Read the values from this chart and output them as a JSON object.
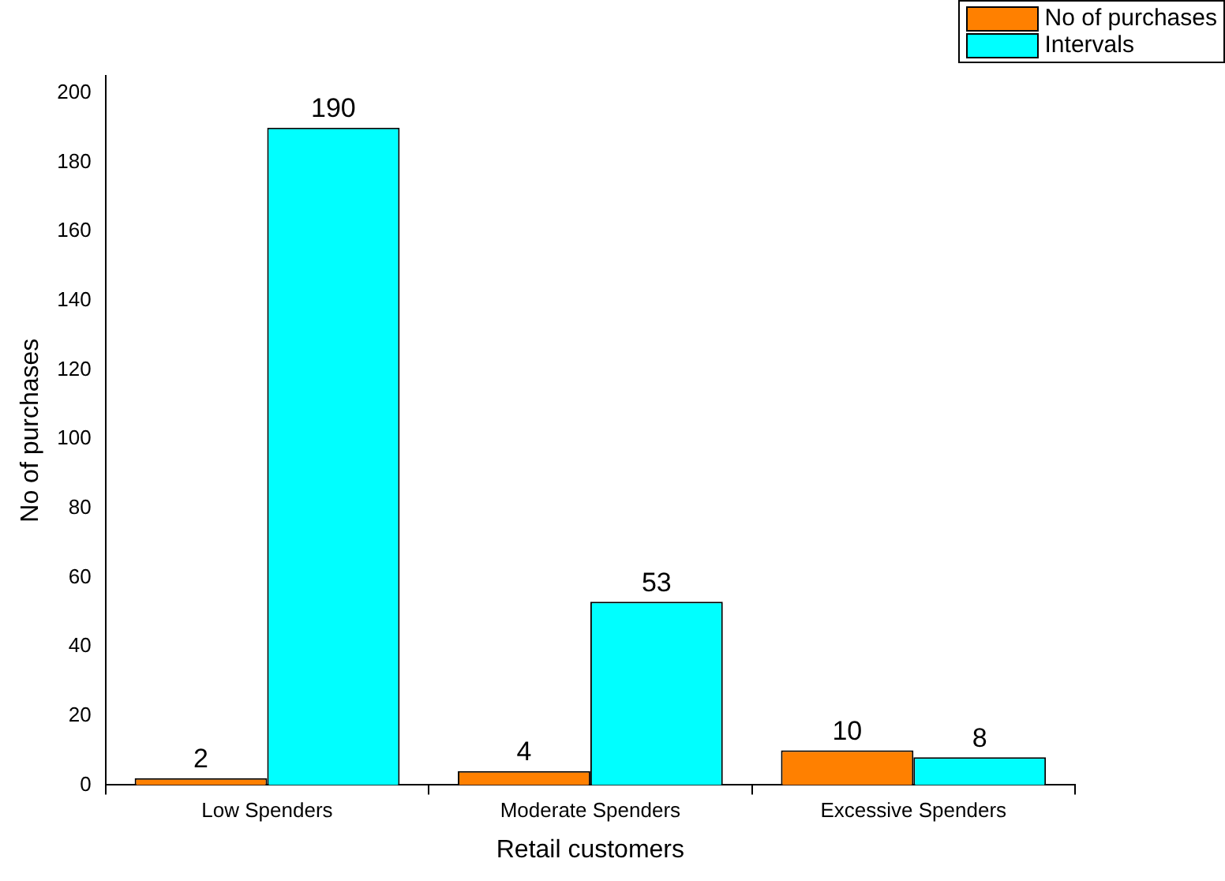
{
  "chart_data": {
    "type": "bar",
    "xlabel": "Retail customers",
    "ylabel": "No of purchases",
    "categories": [
      "Low Spenders",
      "Moderate Spenders",
      "Excessive Spenders"
    ],
    "series": [
      {
        "name": "No of purchases",
        "color": "#ff8000",
        "values": [
          2,
          4,
          10
        ]
      },
      {
        "name": "Intervals",
        "color": "#00ffff",
        "values": [
          190,
          53,
          8
        ]
      }
    ],
    "ylim": [
      0,
      205
    ],
    "yticks": [
      0,
      20,
      40,
      60,
      80,
      100,
      120,
      140,
      160,
      180,
      200
    ],
    "grid": false,
    "legend": "top right",
    "data_labels": true
  }
}
